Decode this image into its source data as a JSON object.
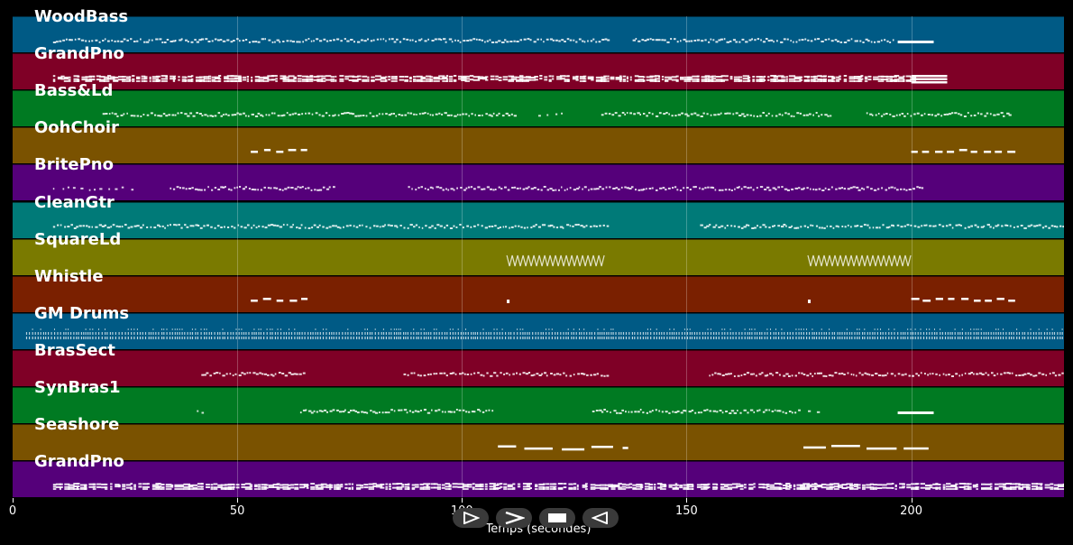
{
  "timeline": {
    "xlabel": "Temps (secondes)",
    "xlim": [
      0,
      234
    ],
    "ticks": [
      {
        "value": 0,
        "label": "0"
      },
      {
        "value": 50,
        "label": "50"
      },
      {
        "value": 100,
        "label": "100"
      },
      {
        "value": 150,
        "label": "150"
      },
      {
        "value": 200,
        "label": "200"
      }
    ]
  },
  "tracks": [
    {
      "name": "WoodBass",
      "color": "#005a85",
      "segments": [
        {
          "start": 9,
          "end": 133,
          "style": "dense"
        },
        {
          "start": 138,
          "end": 196,
          "style": "dense"
        },
        {
          "start": 197,
          "end": 205,
          "style": "sustain"
        }
      ]
    },
    {
      "name": "GrandPno",
      "color": "#7f0026",
      "segments": [
        {
          "start": 9,
          "end": 200,
          "style": "chord"
        },
        {
          "start": 200,
          "end": 208,
          "style": "block"
        }
      ]
    },
    {
      "name": "Bass&Ld",
      "color": "#007a22",
      "segments": [
        {
          "start": 20,
          "end": 112,
          "style": "dense"
        },
        {
          "start": 117,
          "end": 124,
          "style": "sparse"
        },
        {
          "start": 131,
          "end": 182,
          "style": "dense"
        },
        {
          "start": 190,
          "end": 222,
          "style": "dense"
        }
      ]
    },
    {
      "name": "OohChoir",
      "color": "#7a5200",
      "segments": [
        {
          "start": 53,
          "end": 65,
          "style": "dash"
        },
        {
          "start": 200,
          "end": 222,
          "style": "dash"
        }
      ]
    },
    {
      "name": "BritePno",
      "color": "#55007a",
      "segments": [
        {
          "start": 9,
          "end": 27,
          "style": "sparse"
        },
        {
          "start": 35,
          "end": 72,
          "style": "dense"
        },
        {
          "start": 88,
          "end": 203,
          "style": "dense"
        }
      ]
    },
    {
      "name": "CleanGtr",
      "color": "#007a78",
      "segments": [
        {
          "start": 9,
          "end": 133,
          "style": "dense"
        },
        {
          "start": 153,
          "end": 234,
          "style": "dense"
        }
      ]
    },
    {
      "name": "SquareLd",
      "color": "#7a7a00",
      "segments": [
        {
          "start": 110,
          "end": 132,
          "style": "zigzag"
        },
        {
          "start": 177,
          "end": 200,
          "style": "zigzag"
        }
      ]
    },
    {
      "name": "Whistle",
      "color": "#7a2000",
      "segments": [
        {
          "start": 53,
          "end": 65,
          "style": "dash"
        },
        {
          "start": 110,
          "end": 111,
          "style": "dot"
        },
        {
          "start": 177,
          "end": 178,
          "style": "dot"
        },
        {
          "start": 200,
          "end": 222,
          "style": "dash"
        }
      ]
    },
    {
      "name": "GM Drums",
      "color": "#005a85",
      "segments": [
        {
          "start": 3,
          "end": 234,
          "style": "drums"
        }
      ]
    },
    {
      "name": "BrasSect",
      "color": "#7f0026",
      "segments": [
        {
          "start": 42,
          "end": 65,
          "style": "dense"
        },
        {
          "start": 87,
          "end": 133,
          "style": "dense"
        },
        {
          "start": 155,
          "end": 234,
          "style": "dense"
        }
      ]
    },
    {
      "name": "SynBras1",
      "color": "#007a22",
      "segments": [
        {
          "start": 41,
          "end": 43,
          "style": "sparse"
        },
        {
          "start": 64,
          "end": 107,
          "style": "dense"
        },
        {
          "start": 129,
          "end": 175,
          "style": "dense"
        },
        {
          "start": 177,
          "end": 179,
          "style": "sparse"
        },
        {
          "start": 197,
          "end": 205,
          "style": "sustain"
        }
      ]
    },
    {
      "name": "Seashore",
      "color": "#7a5200",
      "segments": [
        {
          "start": 108,
          "end": 137,
          "style": "long"
        },
        {
          "start": 176,
          "end": 204,
          "style": "long"
        }
      ]
    },
    {
      "name": "GrandPno",
      "color": "#55007a",
      "segments": [
        {
          "start": 9,
          "end": 234,
          "style": "chord"
        }
      ]
    }
  ],
  "transport": {
    "buttons": [
      {
        "name": "play-start-button",
        "icon": "play-from-start-icon"
      },
      {
        "name": "play-button",
        "icon": "play-icon"
      },
      {
        "name": "stop-button",
        "icon": "stop-icon"
      },
      {
        "name": "rewind-button",
        "icon": "rewind-icon"
      }
    ]
  }
}
